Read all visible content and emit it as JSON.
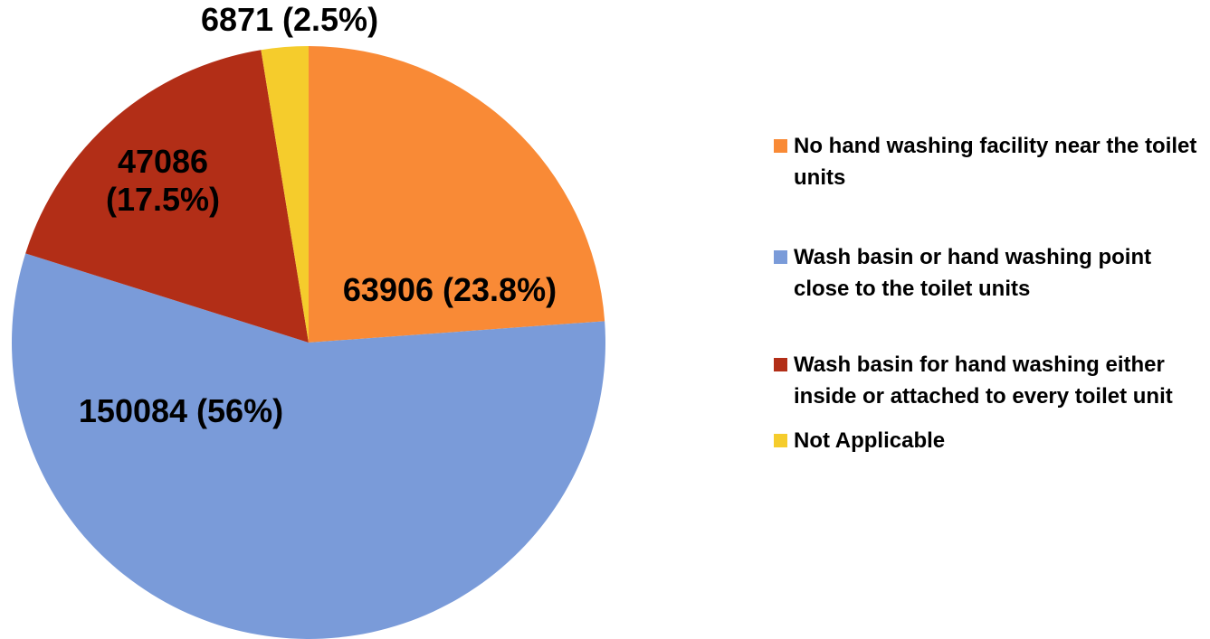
{
  "chart_data": {
    "type": "pie",
    "categories": [
      "No hand washing facility near the toilet units",
      "Wash basin or hand washing point close to the toilet units",
      "Wash basin for hand washing either inside or attached to every toilet unit",
      "Not Applicable"
    ],
    "values": [
      63906,
      150084,
      47086,
      6871
    ],
    "value_labels": [
      "63906 (23.8%)",
      "150084 (56%)",
      "47086 (17.5%)",
      "6871 (2.5%)"
    ],
    "colors": [
      "#f98a36",
      "#7a9bd9",
      "#b22e17",
      "#f5cc2c"
    ],
    "legend": "right"
  }
}
